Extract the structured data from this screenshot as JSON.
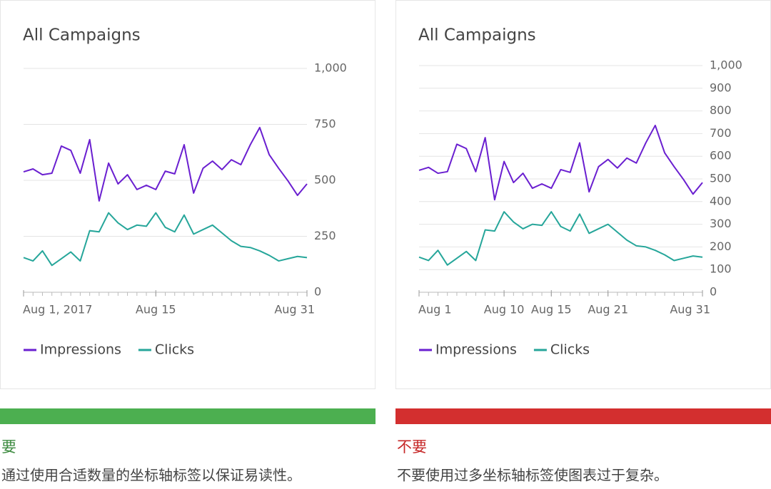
{
  "chart_data": [
    {
      "type": "line",
      "title": "All Campaigns",
      "x": [
        1,
        2,
        3,
        4,
        5,
        6,
        7,
        8,
        9,
        10,
        11,
        12,
        13,
        14,
        15,
        16,
        17,
        18,
        19,
        20,
        21,
        22,
        23,
        24,
        25,
        26,
        27,
        28,
        29,
        30,
        31
      ],
      "series": [
        {
          "name": "Impressions",
          "color": "#6a1fd0",
          "values": [
            538,
            551,
            525,
            532,
            653,
            634,
            532,
            682,
            408,
            577,
            484,
            525,
            459,
            478,
            459,
            541,
            529,
            659,
            443,
            554,
            586,
            548,
            592,
            570,
            659,
            736,
            615,
            554,
            497,
            433,
            484
          ]
        },
        {
          "name": "Clicks",
          "color": "#26a69a",
          "values": [
            155,
            140,
            185,
            120,
            150,
            180,
            140,
            275,
            270,
            355,
            310,
            280,
            300,
            295,
            355,
            290,
            270,
            345,
            260,
            280,
            300,
            265,
            230,
            205,
            200,
            185,
            165,
            140,
            150,
            160,
            155
          ]
        }
      ],
      "xlim": [
        1,
        31
      ],
      "xticks": [
        {
          "value": 1,
          "label": "Aug 1, 2017"
        },
        {
          "value": 15,
          "label": "Aug 15"
        },
        {
          "value": 31,
          "label": "Aug 31"
        }
      ],
      "ylim": [
        0,
        1000
      ],
      "yticks": [
        0,
        250,
        500,
        750,
        {
          "value": 1000,
          "label": "1,000"
        }
      ],
      "grid": true,
      "legend": "bottom"
    },
    {
      "type": "line",
      "title": "All Campaigns",
      "x": [
        1,
        2,
        3,
        4,
        5,
        6,
        7,
        8,
        9,
        10,
        11,
        12,
        13,
        14,
        15,
        16,
        17,
        18,
        19,
        20,
        21,
        22,
        23,
        24,
        25,
        26,
        27,
        28,
        29,
        30,
        31
      ],
      "series": [
        {
          "name": "Impressions",
          "color": "#6a1fd0",
          "values": [
            538,
            551,
            525,
            532,
            653,
            634,
            532,
            682,
            408,
            577,
            484,
            525,
            459,
            478,
            459,
            541,
            529,
            659,
            443,
            554,
            586,
            548,
            592,
            570,
            659,
            736,
            615,
            554,
            497,
            433,
            484
          ]
        },
        {
          "name": "Clicks",
          "color": "#26a69a",
          "values": [
            155,
            140,
            185,
            120,
            150,
            180,
            140,
            275,
            270,
            355,
            310,
            280,
            300,
            295,
            355,
            290,
            270,
            345,
            260,
            280,
            300,
            265,
            230,
            205,
            200,
            185,
            165,
            140,
            150,
            160,
            155
          ]
        }
      ],
      "xlim": [
        1,
        31
      ],
      "xticks": [
        {
          "value": 1,
          "label": "Aug 1"
        },
        {
          "value": 10,
          "label": "Aug 10"
        },
        {
          "value": 15,
          "label": "Aug 15"
        },
        {
          "value": 21,
          "label": "Aug 21"
        },
        {
          "value": 31,
          "label": "Aug 31"
        }
      ],
      "ylim": [
        0,
        1000
      ],
      "yticks": [
        0,
        100,
        200,
        300,
        400,
        500,
        600,
        700,
        800,
        900,
        {
          "value": 1000,
          "label": "1,000"
        }
      ],
      "grid": true,
      "legend": "bottom"
    }
  ],
  "panels": [
    {
      "verdict": "要",
      "text": "通过使用合适数量的坐标轴标签以保证易读性。"
    },
    {
      "verdict": "不要",
      "text": "不要使用过多坐标轴标签使图表过于复杂。"
    }
  ]
}
